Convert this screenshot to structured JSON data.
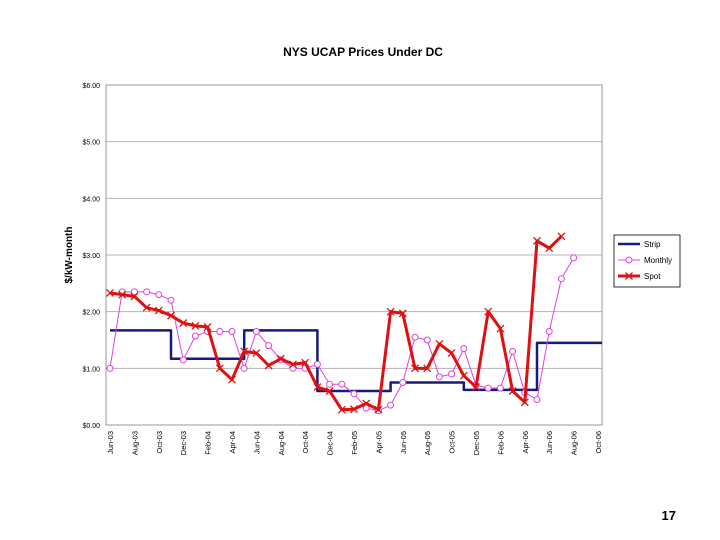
{
  "slide": {
    "number": "17"
  },
  "chart_data": {
    "type": "line",
    "title": "NYS UCAP Prices Under DC",
    "xlabel": "",
    "ylabel": "$/kW-month",
    "ylim": [
      0,
      6
    ],
    "yticks": [
      "$0.00",
      "$1.00",
      "$2.00",
      "$3.00",
      "$4.00",
      "$5.00",
      "$6.00"
    ],
    "grid": true,
    "legend_position": "right",
    "categories": [
      "Jun-03",
      "Jul-03",
      "Aug-03",
      "Sep-03",
      "Oct-03",
      "Nov-03",
      "Dec-03",
      "Jan-04",
      "Feb-04",
      "Mar-04",
      "Apr-04",
      "May-04",
      "Jun-04",
      "Jul-04",
      "Aug-04",
      "Sep-04",
      "Oct-04",
      "Nov-04",
      "Dec-04",
      "Jan-05",
      "Feb-05",
      "Mar-05",
      "Apr-05",
      "May-05",
      "Jun-05",
      "Jul-05",
      "Aug-05",
      "Sep-05",
      "Oct-05",
      "Nov-05",
      "Dec-05",
      "Jan-06",
      "Feb-06",
      "Mar-06",
      "Apr-06",
      "May-06",
      "Jun-06",
      "Jul-06",
      "Aug-06",
      "Sep-06",
      "Oct-06"
    ],
    "tick_labels": [
      "Jun-03",
      "Aug-03",
      "Oct-03",
      "Dec-03",
      "Feb-04",
      "Apr-04",
      "Jun-04",
      "Aug-04",
      "Oct-04",
      "Dec-04",
      "Feb-05",
      "Apr-05",
      "Jun-05",
      "Aug-05",
      "Oct-05",
      "Dec-05",
      "Feb-06",
      "Apr-06",
      "Jun-06",
      "Aug-06",
      "Oct-06"
    ],
    "series": [
      {
        "name": "Strip",
        "color": "#1a1a7a",
        "marker": "none",
        "values": [
          1.67,
          1.67,
          1.67,
          1.67,
          1.67,
          1.17,
          1.17,
          1.17,
          1.17,
          1.17,
          1.17,
          1.67,
          1.67,
          1.67,
          1.67,
          1.67,
          1.67,
          0.6,
          0.6,
          0.6,
          0.6,
          0.6,
          0.6,
          0.75,
          0.75,
          0.75,
          0.75,
          0.75,
          0.75,
          0.62,
          0.62,
          0.62,
          0.62,
          0.62,
          0.62,
          1.45,
          1.45,
          1.45,
          1.45,
          1.45,
          1.45
        ]
      },
      {
        "name": "Monthly",
        "color": "#e040e0",
        "marker": "circle",
        "values": [
          1.0,
          2.35,
          2.35,
          2.35,
          2.3,
          2.2,
          1.15,
          1.57,
          1.65,
          1.65,
          1.65,
          1.0,
          1.65,
          1.4,
          1.15,
          1.0,
          1.0,
          1.07,
          0.72,
          0.72,
          0.55,
          0.3,
          0.25,
          0.35,
          0.75,
          1.55,
          1.5,
          0.85,
          0.9,
          1.35,
          0.7,
          0.65,
          0.65,
          1.3,
          0.57,
          0.45,
          1.65,
          2.58,
          2.95,
          null,
          null
        ]
      },
      {
        "name": "Spot",
        "color": "#e01010",
        "marker": "x",
        "values": [
          2.33,
          2.3,
          2.27,
          2.07,
          2.02,
          1.93,
          1.8,
          1.75,
          1.73,
          1.0,
          0.8,
          1.3,
          1.27,
          1.05,
          1.17,
          1.07,
          1.1,
          0.67,
          0.6,
          0.27,
          0.28,
          0.38,
          0.27,
          2.0,
          1.97,
          1.0,
          1.0,
          1.43,
          1.27,
          0.87,
          0.67,
          2.0,
          1.7,
          0.6,
          0.4,
          3.25,
          3.12,
          3.33,
          null,
          null,
          null
        ]
      }
    ]
  }
}
